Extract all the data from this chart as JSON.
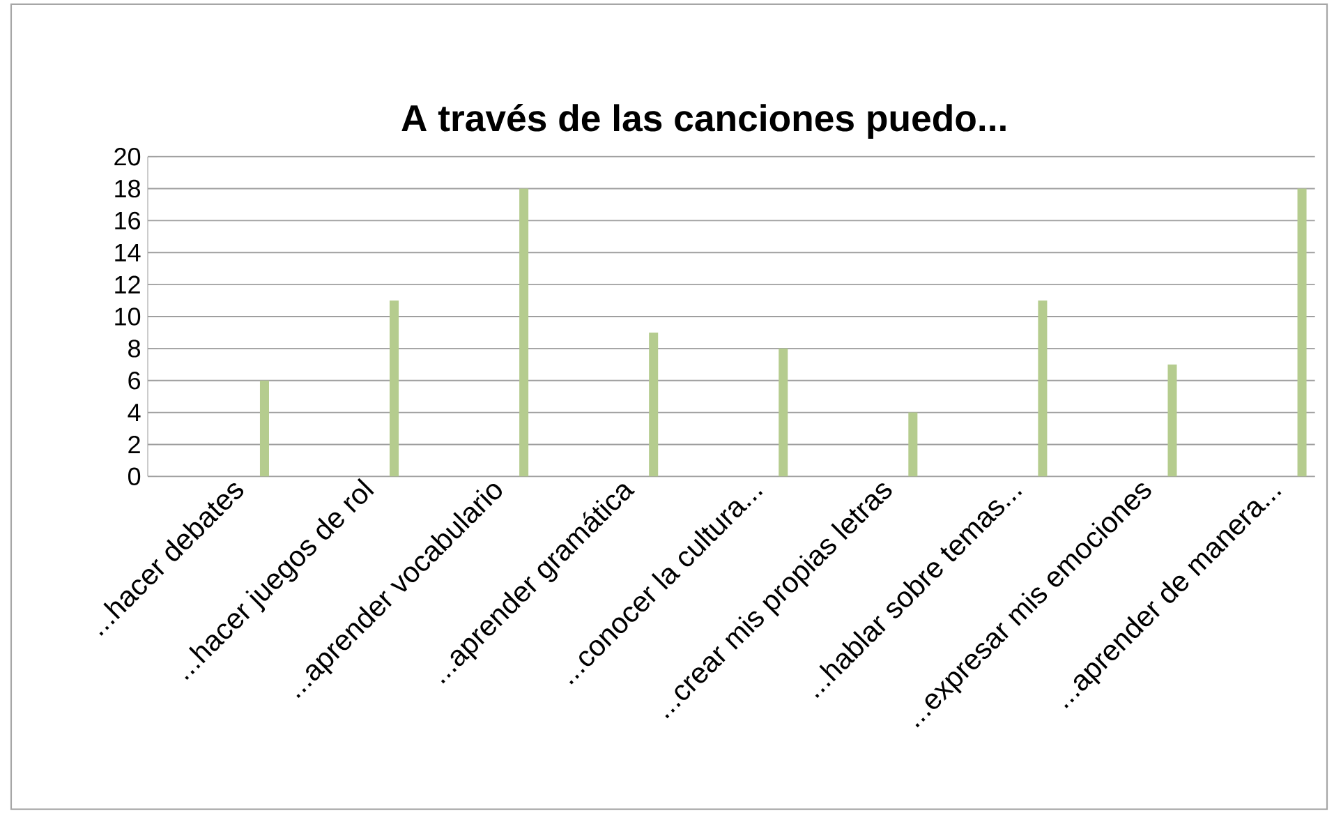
{
  "chart_data": {
    "type": "bar",
    "title": "A través de las canciones puedo...",
    "categories": [
      "...hacer debates",
      "...hacer juegos de rol",
      "...aprender vocabulario",
      "...aprender gramática",
      "...conocer la cultura...",
      "...crear mis propias letras",
      "...hablar sobre temas...",
      "...expresar mis emociones",
      "...aprender de manera..."
    ],
    "values": [
      6,
      11,
      18,
      9,
      8,
      4,
      11,
      7,
      18
    ],
    "color": "#b5cc8e",
    "ylim": [
      0,
      20
    ],
    "yticks": [
      0,
      2,
      4,
      6,
      8,
      10,
      12,
      14,
      16,
      18,
      20
    ],
    "grid": "y"
  }
}
